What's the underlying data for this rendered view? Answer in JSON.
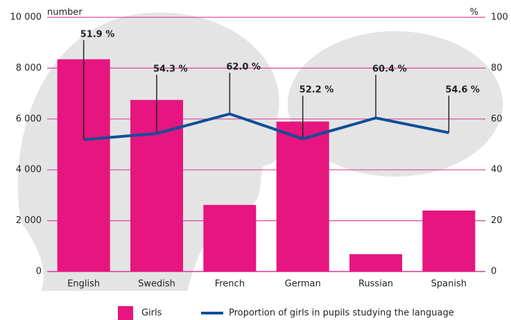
{
  "chart_data": {
    "type": "bar",
    "y_label": "number",
    "y2_label": "%",
    "categories": [
      "English",
      "Swedish",
      "French",
      "German",
      "Russian",
      "Spanish"
    ],
    "series": [
      {
        "name": "Girls",
        "color": "#e6157f",
        "values": [
          8350,
          6750,
          2620,
          5900,
          680,
          2400
        ]
      },
      {
        "name": "Proportion of girls in pupils studying the language",
        "color": "#0d4f97",
        "type": "line",
        "axis": "y2",
        "values": [
          51.9,
          54.3,
          62.0,
          52.2,
          60.4,
          54.6
        ],
        "value_labels": [
          "51.9 %",
          "54.3 %",
          "62.0 %",
          "52.2 %",
          "60.4 %",
          "54.6 %"
        ]
      }
    ],
    "ylim": [
      0,
      10000
    ],
    "yticks": [
      {
        "value": 0,
        "label": "0"
      },
      {
        "value": 2000,
        "label": "2 000"
      },
      {
        "value": 4000,
        "label": "4 000"
      },
      {
        "value": 6000,
        "label": "6 000"
      },
      {
        "value": 8000,
        "label": "8 000"
      },
      {
        "value": 10000,
        "label": "10 000"
      }
    ],
    "y2lim": [
      0,
      100
    ],
    "y2ticks": [
      0,
      20,
      40,
      60,
      80,
      100
    ],
    "grid": true
  }
}
